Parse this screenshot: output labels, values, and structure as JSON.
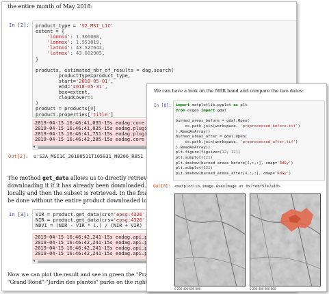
{
  "page1": {
    "intro": "the entire month of May 2018:",
    "cell2": {
      "in_prompt": "In [2]:",
      "code": {
        "l1a": "product_type = ",
        "l1b": "'S2_MSI_L1C'",
        "l2": "extent = {",
        "l3a": "    ",
        "l3b": "'lonmin'",
        "l3c": ": ",
        "l3d": "1.306000",
        "l3e": ",",
        "l4b": "'lonmax'",
        "l4d": "1.551819",
        "l5b": "'latmin'",
        "l5d": "43.527642",
        "l6b": "'latmax'",
        "l6d": "43.662905",
        "l7": "}",
        "l9": "products, estimated_nbr_of_results = dag.search(",
        "l10": "        productType=product_type,",
        "l11a": "        start=",
        "l11b": "'2018-05-01'",
        "l12a": "        end=",
        "l12b": "'2018-05-31'",
        "l13": "        box=extent,",
        "l14a": "        cloudCover=",
        "l14b": "1",
        "l15": ")",
        "l16a": "product = products[",
        "l16b": "0",
        "l16c": "]",
        "l17a": "product.properties[",
        "l17b": "'title'",
        "l17c": "]"
      },
      "log": [
        "2019-04-15 16:46:41,035-15s eodag.core",
        "2019-04-15 16:46:41,035-15s eodag.plugin",
        "2019-04-15 16:46:41,751-15s eodag.plugin",
        "2019-04-15 16:46:42,205-15s eodag.core"
      ],
      "out_prompt": "Out[2]:",
      "out_text": "u'S2A_MSI1C_20180511T105031_N0206_R051"
    },
    "para1": {
      "pre": "The method ",
      "method": "get_data",
      "post": " allows us to directly retrieve a subset",
      "line2": "downloading it if it has already been downloaded. If it has no",
      "line3": "locally and then the subset is retrieved. In the final version c",
      "line4": "be done without the entire product downloaded locally."
    },
    "cell3": {
      "in_prompt": "In [3]:",
      "code": {
        "l1a": "VIR = product.get_data(crs=",
        "l1b": "'epsg:4326'",
        "l1c": ",",
        "l2a": "NIR = product.get_data(crs=",
        "l2b": "'epsg:4326'",
        "l2c": ",",
        "l3a": "NDVI = (NIR - VIR * ",
        "l3b": "1.",
        "l3c": ") / (NIR + VIR)"
      },
      "log": [
        "2019-04-15 16:46:42,241-15s eodag.api.pr",
        "2019-04-15 16:46:42,241-15s eodag.api.pr",
        "2019-04-15 16:46:42,241-15s eodag.api.pr",
        "2019-04-15 16:46:42,241-15s eodag.api.pr"
      ]
    },
    "para2": {
      "line1": "Now we can plot the result and see in green the \"Prairie des Filtres\" on the left, and",
      "line2": "\"Grand-Rond\"-\"Jardin des plantes\" parks on the right center. In red, the \"Garonne\"."
    }
  },
  "page2": {
    "intro": "We can have a look on the NBR band and compare the two dates:",
    "cell8": {
      "in_prompt": "In [8]:",
      "code": {
        "l1a": "import",
        "l1b": " matplotlib.pyplot ",
        "l1c": "as",
        "l1d": " plt",
        "l2a": "from",
        "l2b": " osgeo ",
        "l2c": "import",
        "l2d": " gdal",
        "l4": "burned_areas_before = gdal.Open(",
        "l5a": "    os.path.join(workspace, ",
        "l5b": "'preprocessed_before.tif'",
        "l5c": ")",
        "l6": ").ReadAsArray()",
        "l7": "burned_areas_after = gdal.Open(",
        "l8a": "    os.path.join(workspace, ",
        "l8b": "'preprocessed_after.tif'",
        "l8c": ")",
        "l9": ").ReadAsArray()",
        "l10a": "plt.figure(figsize=(",
        "l10b": "12",
        "l10c": ", ",
        "l10d": "12",
        "l10e": "))",
        "l11a": "plt.subplot(",
        "l11b": "121",
        "l11c": ")",
        "l12a": "plt.imshow(burned_areas_before[",
        "l12b": "4",
        "l12c": ",:,:], cmap=",
        "l12d": "'RdGy'",
        "l12e": ")",
        "l13a": "plt.subplot(",
        "l13b": "122",
        "l13c": ")",
        "l14a": "plt.imshow(burned_areas_after[",
        "l14b": "4",
        "l14c": ",:,:], cmap=",
        "l14d": "'RdGy'",
        "l14e": ")"
      },
      "out_prompt": "Out[8]:",
      "out_text": "<matplotlib.image.AxesImage at 0x7febf57e7a10>"
    },
    "plots": {
      "left_xticks": "0     200    400    600    800",
      "right_xticks": "0     200    400    600    800"
    }
  },
  "colors": {
    "input_prompt": "#303f9f",
    "output_prompt": "#d84315",
    "log_background": "#fddede",
    "burned_area": "#e26a4f"
  }
}
